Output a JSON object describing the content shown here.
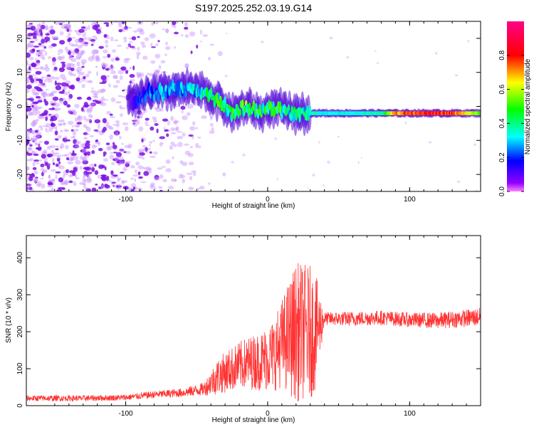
{
  "chart_data": [
    {
      "type": "heatmap",
      "title": "S197.2025.252.03.19.G14",
      "xlabel": "Height of straight line (km)",
      "ylabel": "Frequency (Hz)",
      "xlim": [
        -170,
        150
      ],
      "ylim": [
        -25,
        25
      ],
      "x_ticks": [
        -100,
        0,
        100
      ],
      "x_tick_labels": [
        "-100",
        "0",
        "100"
      ],
      "y_ticks": [
        -20,
        -10,
        0,
        10,
        20
      ],
      "y_tick_labels": [
        "-20",
        "-10",
        "0",
        "10",
        "20"
      ],
      "colorbar": {
        "label": "Normalized spectral amplitude",
        "range": [
          0,
          1
        ],
        "ticks": [
          0.0,
          0.2,
          0.4,
          0.6,
          0.8
        ],
        "tick_labels": [
          "0.0",
          "0.2",
          "0.4",
          "0.6",
          "0.8"
        ],
        "colormap": "rainbow (magenta-blue-cyan-green-yellow-red-pink)"
      },
      "ridge": {
        "x": [
          -95,
          -85,
          -75,
          -65,
          -55,
          -45,
          -35,
          -25,
          -15,
          -5,
          5,
          15,
          25,
          40,
          60,
          80,
          90,
          110,
          130,
          150
        ],
        "y": [
          1,
          4,
          4,
          5,
          5,
          4,
          2,
          -2,
          0,
          -2,
          0,
          -2,
          -2,
          -2,
          -2,
          -2,
          -2,
          -2,
          -2,
          -2
        ],
        "amplitude": [
          0.15,
          0.25,
          0.3,
          0.3,
          0.3,
          0.4,
          0.45,
          0.45,
          0.5,
          0.45,
          0.5,
          0.4,
          0.4,
          0.35,
          0.35,
          0.4,
          0.75,
          0.85,
          0.8,
          0.55
        ]
      },
      "noise_region_x": [
        -170,
        -50
      ]
    },
    {
      "type": "line",
      "xlabel": "Height of straight line (km)",
      "ylabel": "SNR (10 * v/v)",
      "xlim": [
        -170,
        150
      ],
      "ylim": [
        0,
        460
      ],
      "x_ticks": [
        -100,
        0,
        100
      ],
      "x_tick_labels": [
        "-100",
        "0",
        "100"
      ],
      "y_ticks": [
        0,
        100,
        200,
        300,
        400
      ],
      "y_tick_labels": [
        "0",
        "100",
        "200",
        "300",
        "400"
      ],
      "color": "#ff3333",
      "series": [
        {
          "name": "SNR",
          "x": [
            -170,
            -130,
            -100,
            -80,
            -60,
            -45,
            -35,
            -25,
            -15,
            -5,
            5,
            10,
            20,
            30,
            33,
            40,
            60,
            80,
            100,
            120,
            150
          ],
          "mean": [
            20,
            20,
            22,
            30,
            35,
            45,
            80,
            100,
            115,
            120,
            140,
            170,
            200,
            200,
            200,
            235,
            235,
            238,
            232,
            230,
            240
          ],
          "spread": [
            8,
            8,
            8,
            10,
            12,
            18,
            50,
            60,
            70,
            80,
            100,
            120,
            190,
            180,
            170,
            18,
            20,
            20,
            20,
            22,
            25
          ]
        }
      ]
    }
  ]
}
